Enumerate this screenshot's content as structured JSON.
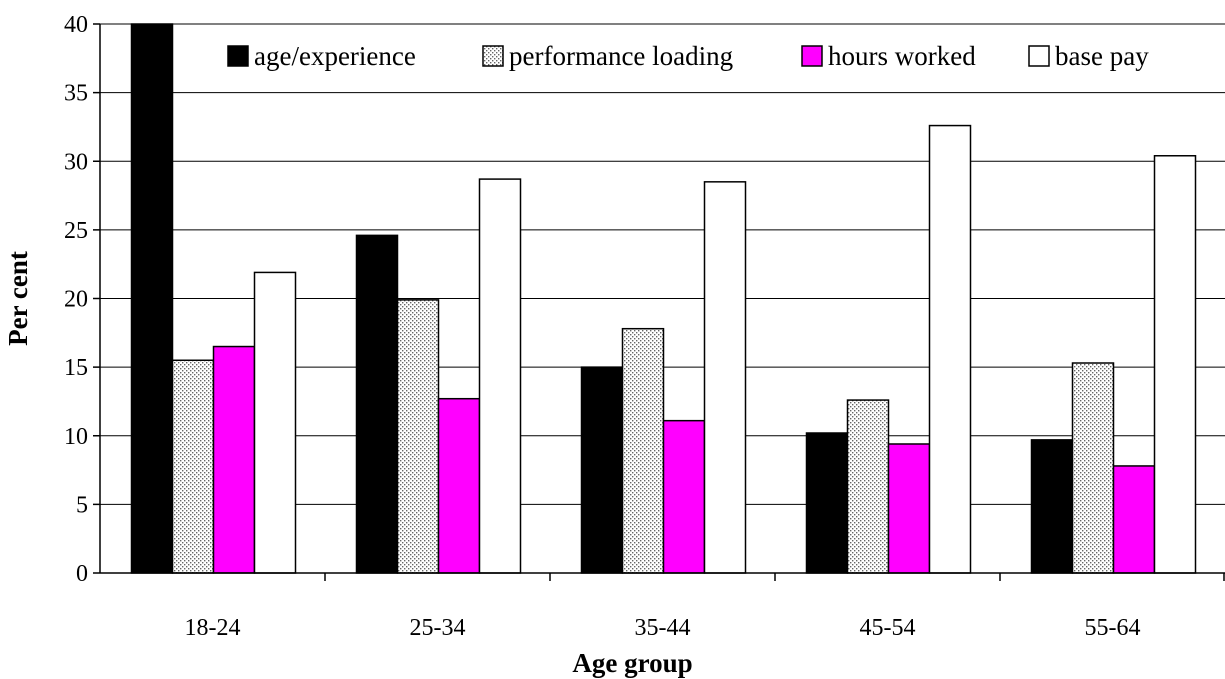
{
  "chart_data": {
    "type": "bar",
    "title": "",
    "xlabel": "Age group",
    "ylabel": "Per cent",
    "categories": [
      "18-24",
      "25-34",
      "35-44",
      "45-54",
      "55-64"
    ],
    "series": [
      {
        "name": "age/experience",
        "values": [
          40.3,
          24.6,
          15.0,
          10.2,
          9.7
        ],
        "color": "#000000",
        "pattern": "solid"
      },
      {
        "name": "performance loading",
        "values": [
          15.5,
          19.9,
          17.8,
          12.6,
          15.3
        ],
        "color": "#d9d9d9",
        "pattern": "dotted"
      },
      {
        "name": "hours worked",
        "values": [
          16.5,
          12.7,
          11.1,
          9.4,
          7.8
        ],
        "color": "#ff00ff",
        "pattern": "solid"
      },
      {
        "name": "base pay",
        "values": [
          21.9,
          28.7,
          28.5,
          32.6,
          30.4
        ],
        "color": "#ffffff",
        "pattern": "solid"
      }
    ],
    "yticks": [
      "0",
      "5",
      "10",
      "15",
      "20",
      "25",
      "30",
      "35",
      "40"
    ],
    "ylim": [
      0,
      40
    ],
    "grid": true,
    "legend_position": "top"
  }
}
